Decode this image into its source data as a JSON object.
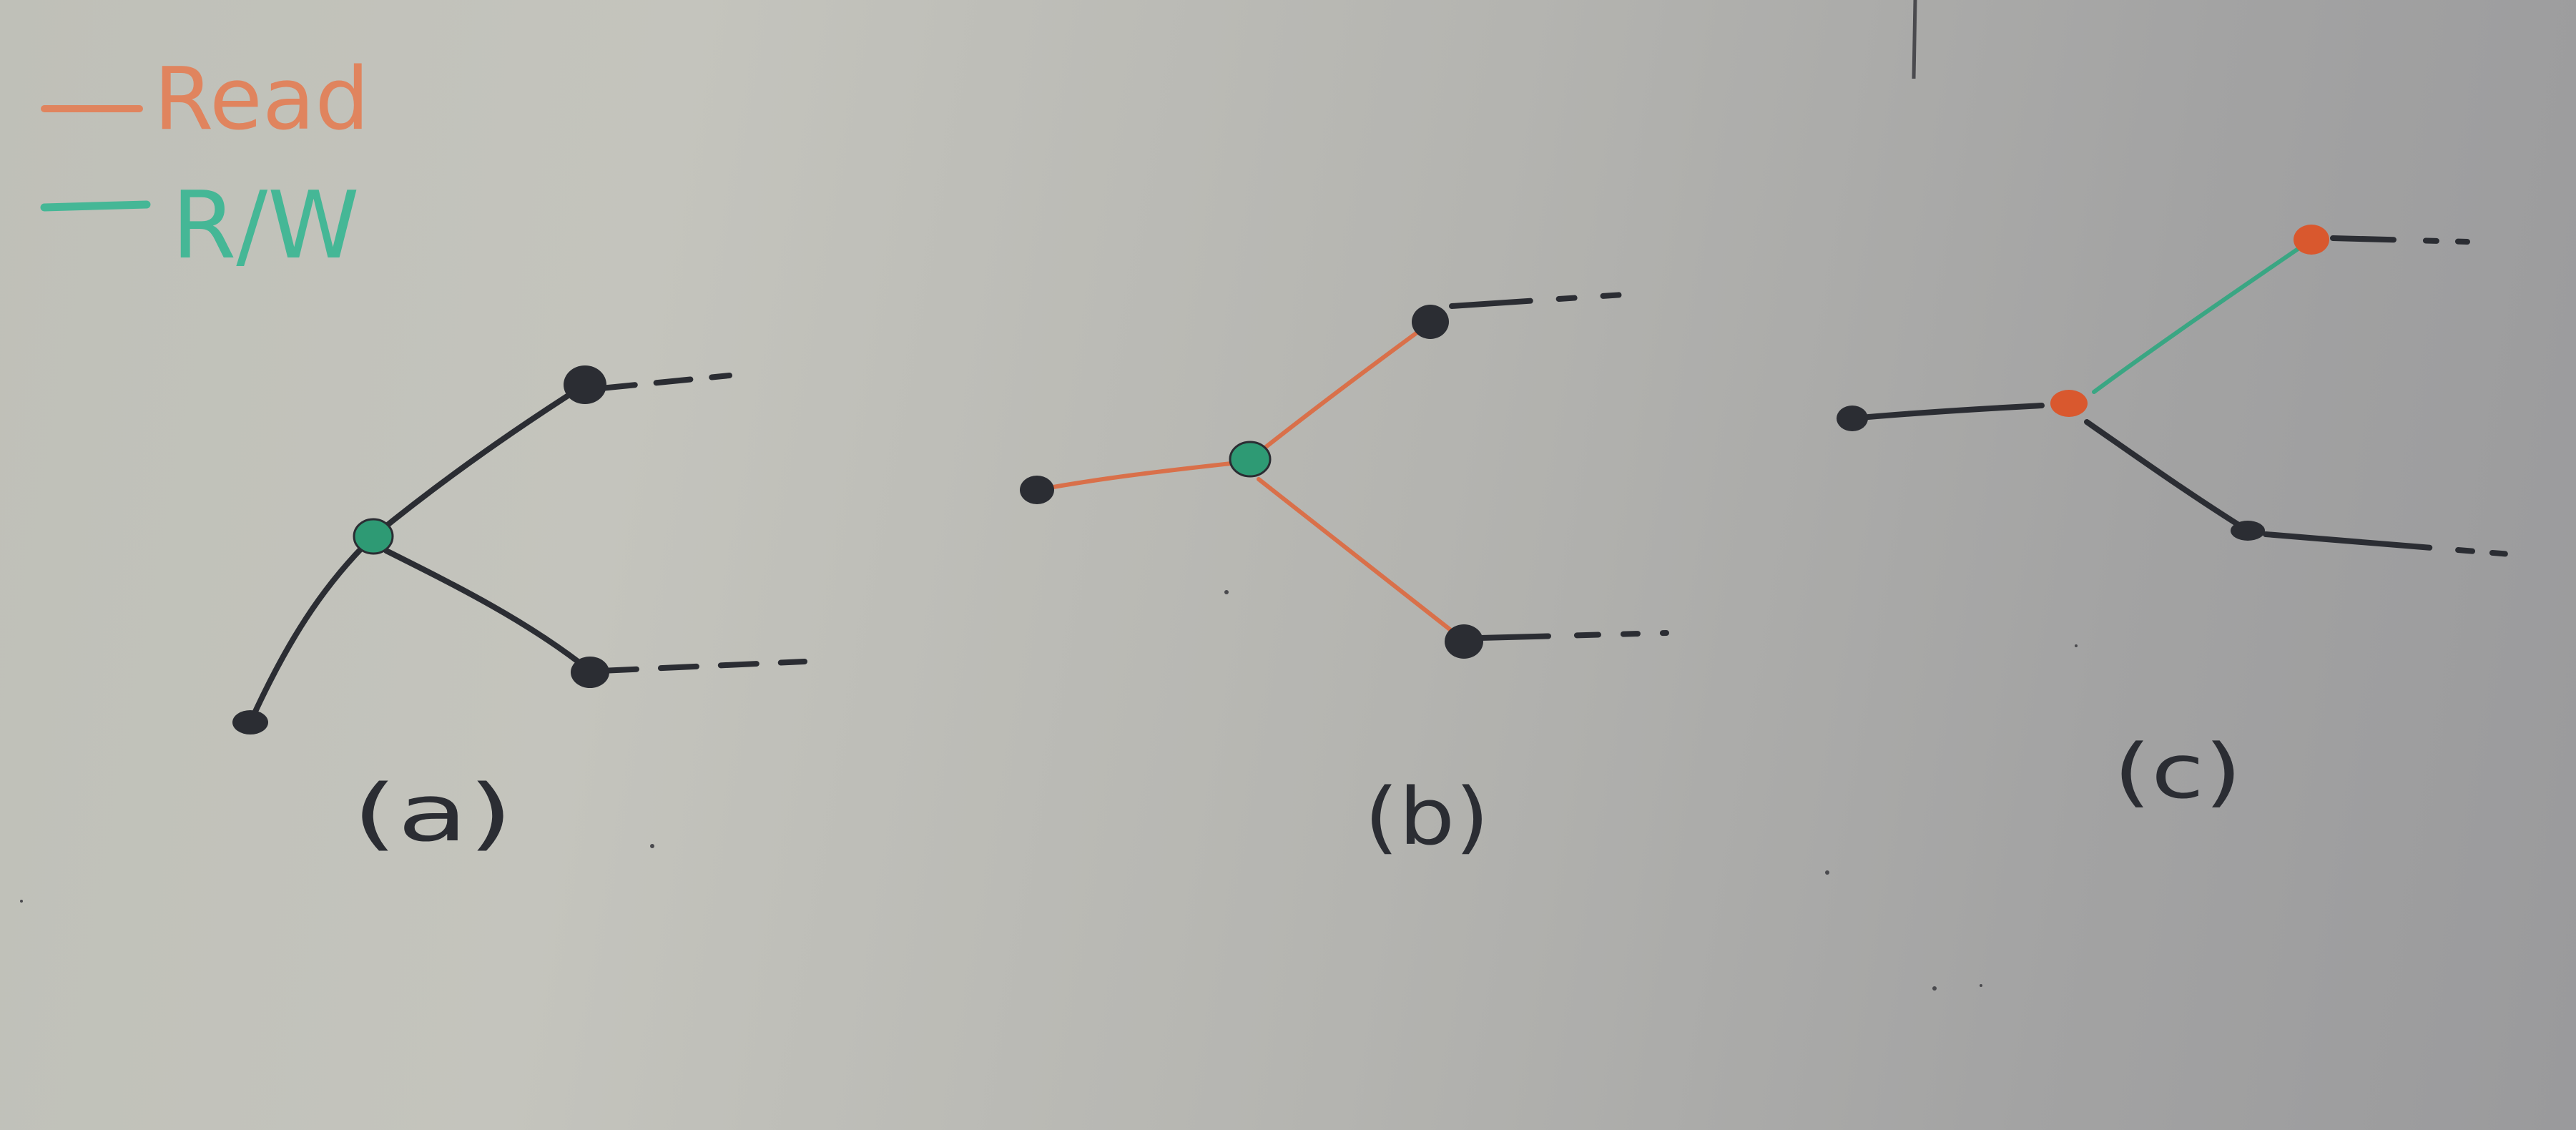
{
  "legend": {
    "items": [
      {
        "label": "Read",
        "color": "#e0845e"
      },
      {
        "label": "R/W",
        "color": "#45b796"
      }
    ]
  },
  "diagrams": [
    {
      "caption": "(a)"
    },
    {
      "caption": "(b)"
    },
    {
      "caption": "(c)"
    }
  ],
  "colors": {
    "ink": "#2b2d33",
    "read": "#d9704a",
    "rw": "#3aa683",
    "node_read": "#d9582e",
    "node_rw": "#2e9a74"
  }
}
